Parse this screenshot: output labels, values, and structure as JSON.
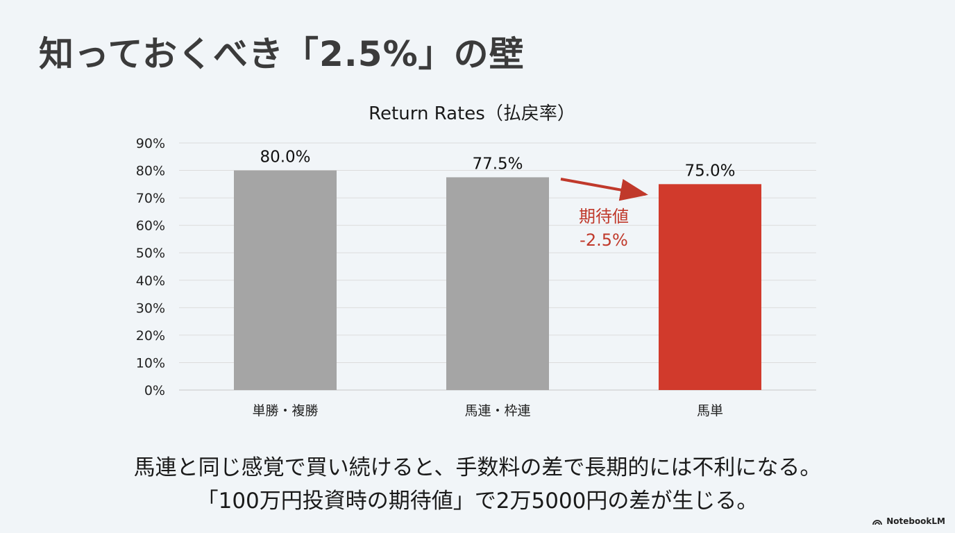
{
  "slide": {
    "title": "知っておくべき「2.5%」の壁",
    "caption_line1": "馬連と同じ感覚で買い続けると、手数料の差で長期的には不利になる。",
    "caption_line2": "「100万円投資時の期待値」で2万5000円の差が生じる。",
    "brand": "NotebookLM",
    "brand_icon": "notebooklm-logo-icon"
  },
  "chart_data": {
    "type": "bar",
    "title": "Return Rates（払戻率）",
    "categories": [
      "単勝・複勝",
      "馬連・枠連",
      "馬単"
    ],
    "values": [
      80.0,
      77.5,
      75.0
    ],
    "value_labels": [
      "80.0%",
      "77.5%",
      "75.0%"
    ],
    "bar_colors": [
      "#a5a5a5",
      "#a5a5a5",
      "#d13a2c"
    ],
    "ylim": [
      0,
      90
    ],
    "yticks": [
      0,
      10,
      20,
      30,
      40,
      50,
      60,
      70,
      80,
      90
    ],
    "ytick_labels": [
      "0%",
      "10%",
      "20%",
      "30%",
      "40%",
      "50%",
      "60%",
      "70%",
      "80%",
      "90%"
    ],
    "grid": true,
    "xlabel": "",
    "ylabel": "",
    "annotation": {
      "line1": "期待値",
      "line2": "-2.5%",
      "from_category": "馬連・枠連",
      "to_category": "馬単",
      "color": "#c0392b"
    }
  }
}
